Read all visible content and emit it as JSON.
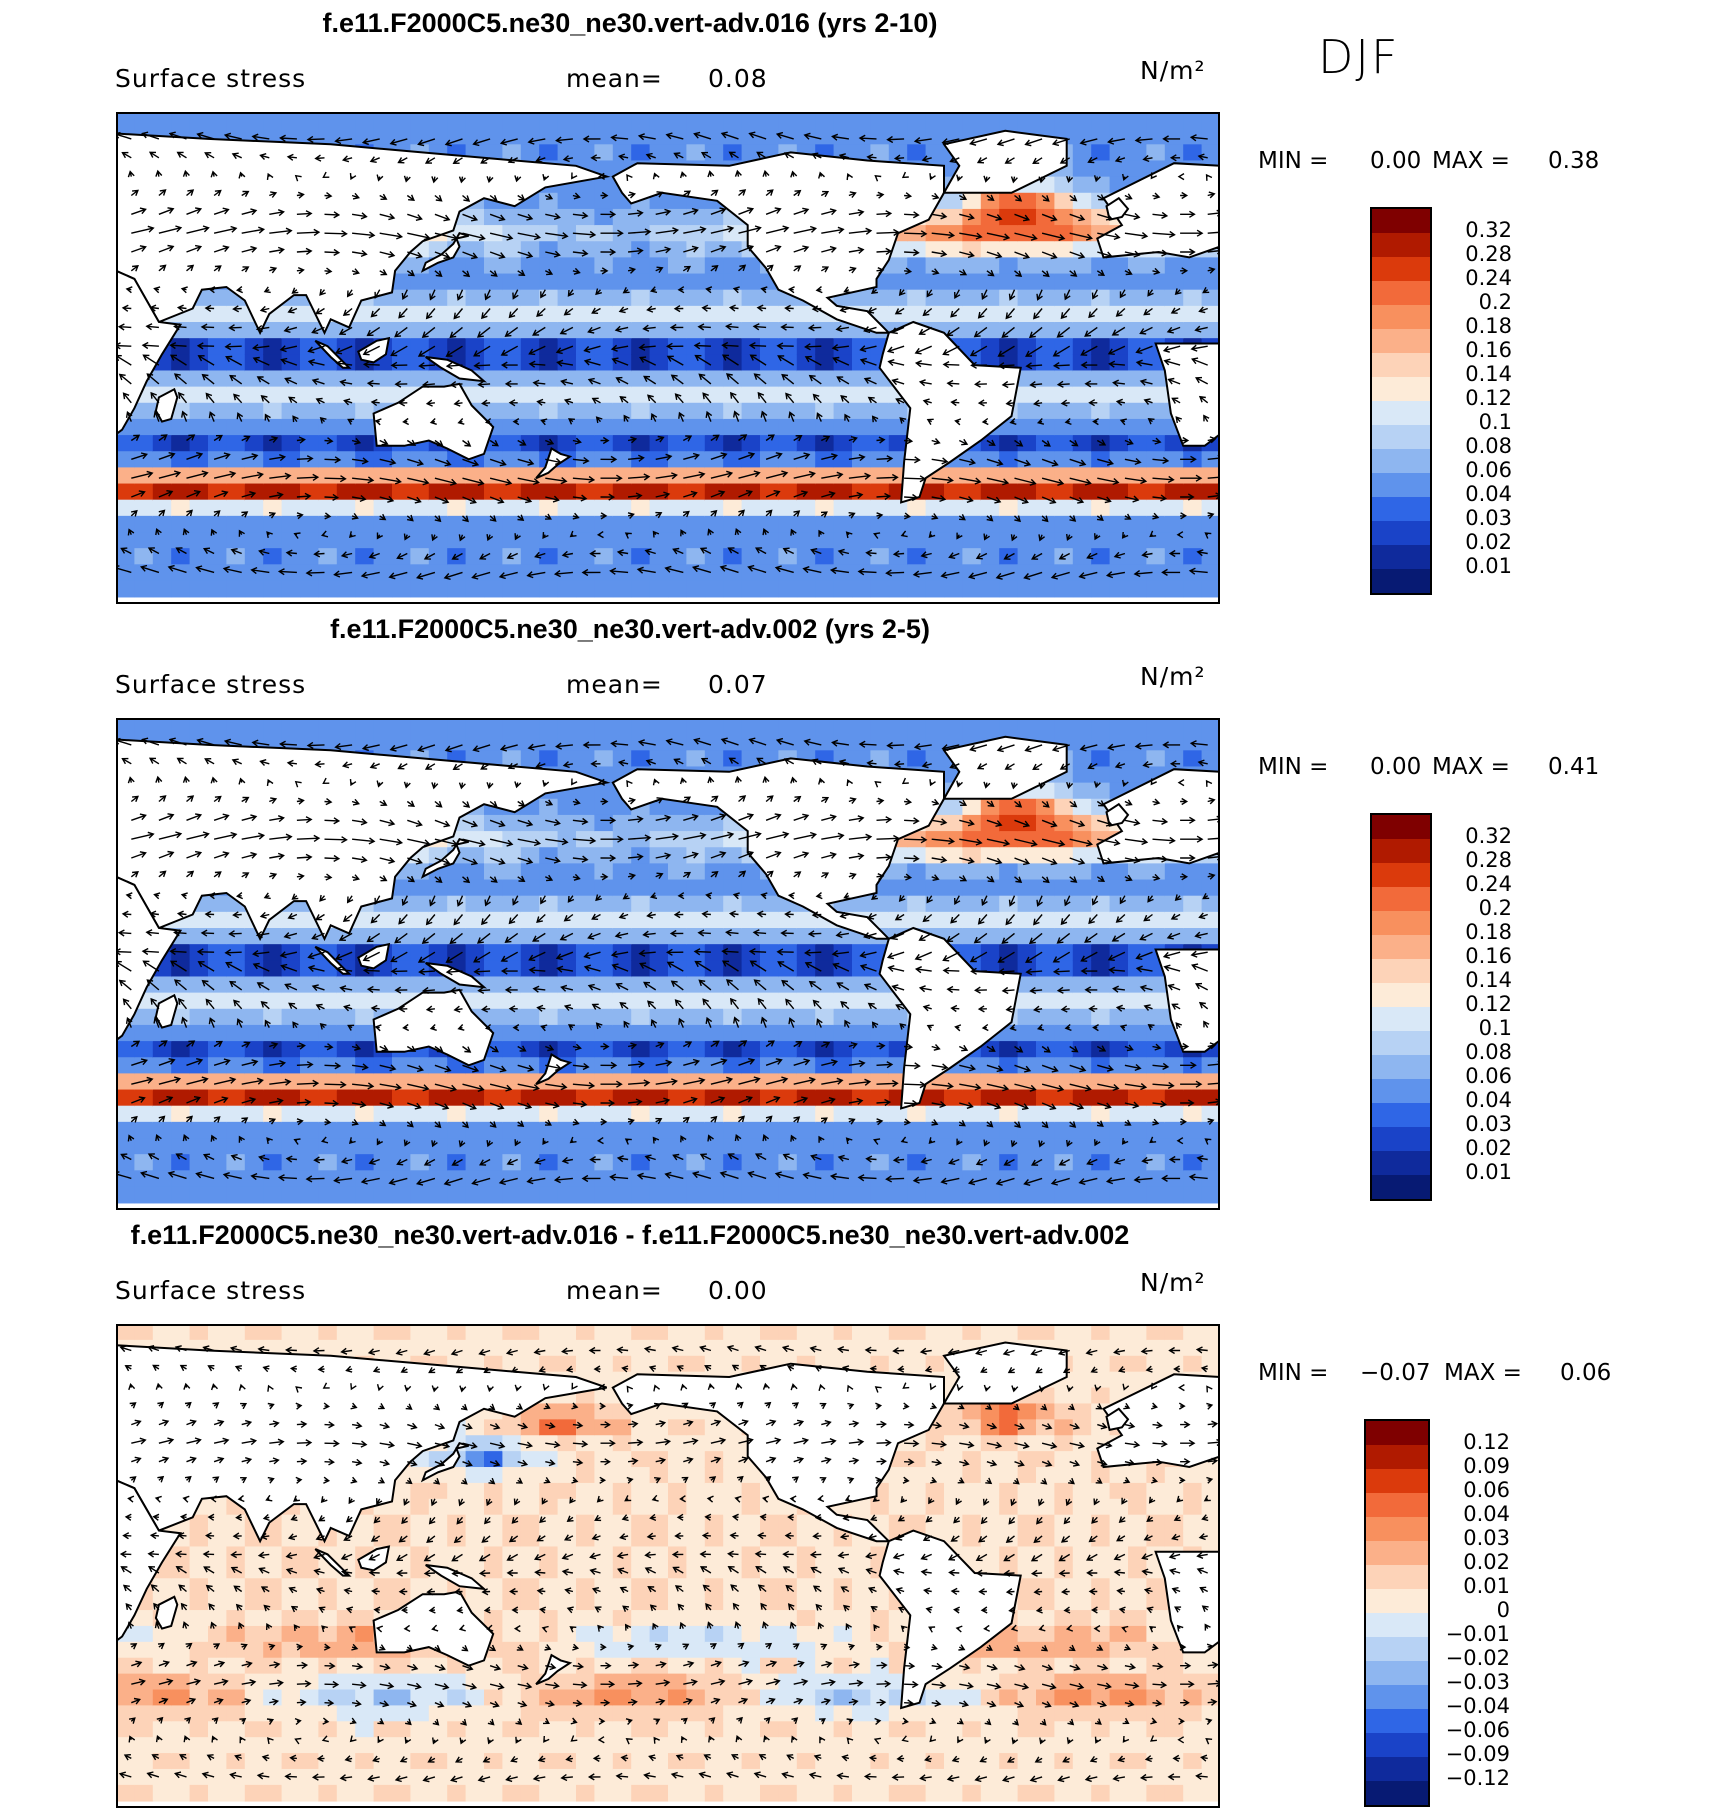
{
  "season": "DJF",
  "panels": [
    {
      "title": "f.e11.F2000C5.ne30_ne30.vert-adv.016 (yrs 2-10)",
      "variable": "Surface stress",
      "mean_label": "mean=",
      "mean_value": "0.08",
      "units": "N/m²",
      "min_label": "MIN =",
      "min_value": "0.00",
      "max_label": "MAX =",
      "max_value": "0.38",
      "colorbar": {
        "labels": [
          "0.32",
          "0.28",
          "0.24",
          "0.2",
          "0.18",
          "0.16",
          "0.14",
          "0.12",
          "0.1",
          "0.08",
          "0.06",
          "0.04",
          "0.03",
          "0.02",
          "0.01"
        ],
        "colors": [
          "#7f0000",
          "#b01a00",
          "#db3a0c",
          "#f26a3a",
          "#f8905e",
          "#fbb089",
          "#fdd3b8",
          "#fdebd8",
          "#d9e8f7",
          "#b7d2f4",
          "#8eb6f0",
          "#5f93ec",
          "#2f66e6",
          "#1a43c8",
          "#0f2a9c",
          "#071a73"
        ]
      },
      "field": "stress"
    },
    {
      "title": "f.e11.F2000C5.ne30_ne30.vert-adv.002 (yrs 2-5)",
      "variable": "Surface stress",
      "mean_label": "mean=",
      "mean_value": "0.07",
      "units": "N/m²",
      "min_label": "MIN =",
      "min_value": "0.00",
      "max_label": "MAX =",
      "max_value": "0.41",
      "colorbar": {
        "labels": [
          "0.32",
          "0.28",
          "0.24",
          "0.2",
          "0.18",
          "0.16",
          "0.14",
          "0.12",
          "0.1",
          "0.08",
          "0.06",
          "0.04",
          "0.03",
          "0.02",
          "0.01"
        ],
        "colors": [
          "#7f0000",
          "#b01a00",
          "#db3a0c",
          "#f26a3a",
          "#f8905e",
          "#fbb089",
          "#fdd3b8",
          "#fdebd8",
          "#d9e8f7",
          "#b7d2f4",
          "#8eb6f0",
          "#5f93ec",
          "#2f66e6",
          "#1a43c8",
          "#0f2a9c",
          "#071a73"
        ]
      },
      "field": "stress"
    },
    {
      "title": "f.e11.F2000C5.ne30_ne30.vert-adv.016 - f.e11.F2000C5.ne30_ne30.vert-adv.002",
      "variable": "Surface stress",
      "mean_label": "mean=",
      "mean_value": "0.00",
      "units": "N/m²",
      "min_label": "MIN =",
      "min_value": "−0.07",
      "max_label": "MAX =",
      "max_value": "0.06",
      "colorbar": {
        "labels": [
          "0.12",
          "0.09",
          "0.06",
          "0.04",
          "0.03",
          "0.02",
          "0.01",
          "0",
          "−0.01",
          "−0.02",
          "−0.03",
          "−0.04",
          "−0.06",
          "−0.09",
          "−0.12"
        ],
        "colors": [
          "#7f0000",
          "#b01a00",
          "#db3a0c",
          "#f26a3a",
          "#f8905e",
          "#fbb089",
          "#fdd3b8",
          "#fdebd8",
          "#d9e8f7",
          "#b7d2f4",
          "#8eb6f0",
          "#5f93ec",
          "#2f66e6",
          "#1a43c8",
          "#0f2a9c",
          "#071a73"
        ]
      },
      "field": "diff"
    }
  ]
}
